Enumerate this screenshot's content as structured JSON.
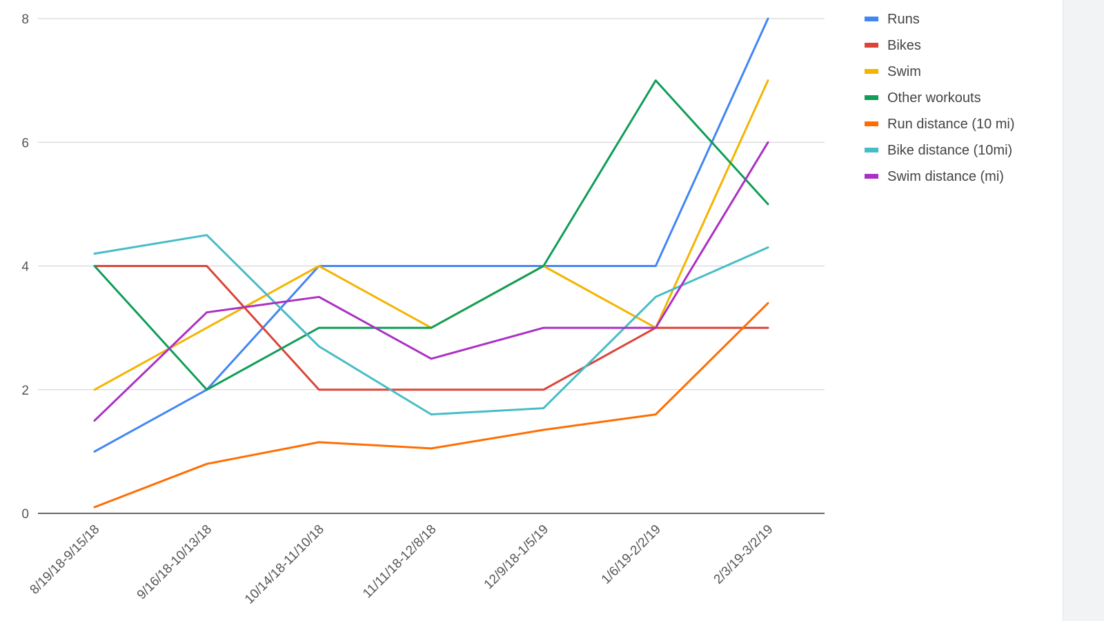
{
  "chart_data": {
    "type": "line",
    "title": "",
    "xlabel": "",
    "ylabel": "",
    "ylim": [
      0,
      8
    ],
    "yticks": [
      0,
      2,
      4,
      6,
      8
    ],
    "grid": true,
    "legend_position": "right",
    "categories": [
      "8/19/18-9/15/18",
      "9/16/18-10/13/18",
      "10/14/18-11/10/18",
      "11/11/18-12/8/18",
      "12/9/18-1/5/19",
      "1/6/19-2/2/19",
      "2/3/19-3/2/19"
    ],
    "series": [
      {
        "name": "Runs",
        "color": "#4285f4",
        "values": [
          1,
          2,
          4,
          4,
          4,
          4,
          8
        ]
      },
      {
        "name": "Bikes",
        "color": "#db4437",
        "values": [
          4,
          4,
          2,
          2,
          2,
          3,
          3
        ]
      },
      {
        "name": "Swim",
        "color": "#f4b400",
        "values": [
          2,
          3,
          4,
          3,
          4,
          3,
          7
        ]
      },
      {
        "name": "Other workouts",
        "color": "#0f9d58",
        "values": [
          4,
          2,
          3,
          3,
          4,
          7,
          5
        ]
      },
      {
        "name": "Run distance (10 mi)",
        "color": "#ff6d01",
        "values": [
          0.1,
          0.8,
          1.15,
          1.05,
          1.35,
          1.6,
          3.4
        ]
      },
      {
        "name": "Bike distance (10mi)",
        "color": "#46bdc6",
        "values": [
          4.2,
          4.5,
          2.7,
          1.6,
          1.7,
          3.5,
          4.3
        ]
      },
      {
        "name": "Swim distance (mi)",
        "color": "#ab30c4",
        "values": [
          1.5,
          3.25,
          3.5,
          2.5,
          3,
          3,
          6
        ]
      }
    ]
  }
}
